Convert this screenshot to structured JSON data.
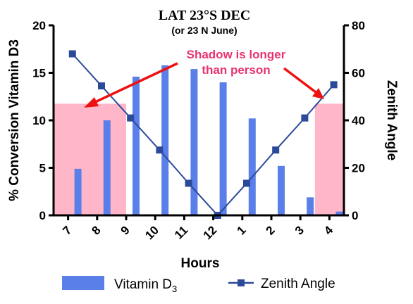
{
  "chart_data": {
    "type": "bar+line",
    "title": "LAT 23°S DEC",
    "subtitle": "(or 23 N June)",
    "xlabel": "Hours",
    "ylabel_left": "% Conversion Vitamin D3",
    "ylabel_right": "Zenith Angle",
    "categories": [
      "7",
      "8",
      "9",
      "10",
      "11",
      "12",
      "1",
      "2",
      "3",
      "4"
    ],
    "ylim_left": [
      0,
      20
    ],
    "yticks_left": [
      "0",
      "5",
      "10",
      "15",
      "20"
    ],
    "ylim_right": [
      0,
      80
    ],
    "yticks_right": [
      "0",
      "20",
      "40",
      "60",
      "80"
    ],
    "grid": false,
    "legend_position": "bottom",
    "series": [
      {
        "name": "Vitamin D",
        "name_sub": "3",
        "type": "bar",
        "axis": "left",
        "color": "#5b7fe8",
        "values": [
          4.9,
          10.0,
          14.6,
          15.8,
          15.4,
          14.0,
          10.2,
          5.2,
          1.9,
          0.4
        ]
      },
      {
        "name": "Zenith Angle",
        "type": "line",
        "axis": "right",
        "color": "#2b4a9a",
        "x": [
          7.15,
          8.15,
          9.15,
          10.15,
          11.15,
          12.15,
          13.15,
          14.15,
          15.15,
          16.15
        ],
        "values": [
          68,
          54.5,
          41,
          27.5,
          13.5,
          0,
          13.5,
          27.5,
          41,
          55
        ]
      }
    ],
    "shaded_regions": [
      {
        "x_from": 6.5,
        "x_to": 9.0,
        "y_to": 47,
        "axis": "right",
        "color": "#ffb6c8"
      },
      {
        "x_from": 15.5,
        "x_to": 16.5,
        "y_to": 47,
        "axis": "right",
        "color": "#ffb6c8"
      }
    ],
    "annotation": {
      "lines": [
        "Shadow is longer",
        "than person"
      ],
      "color": "#e8336f",
      "arrow_color": "#ee1111"
    }
  }
}
